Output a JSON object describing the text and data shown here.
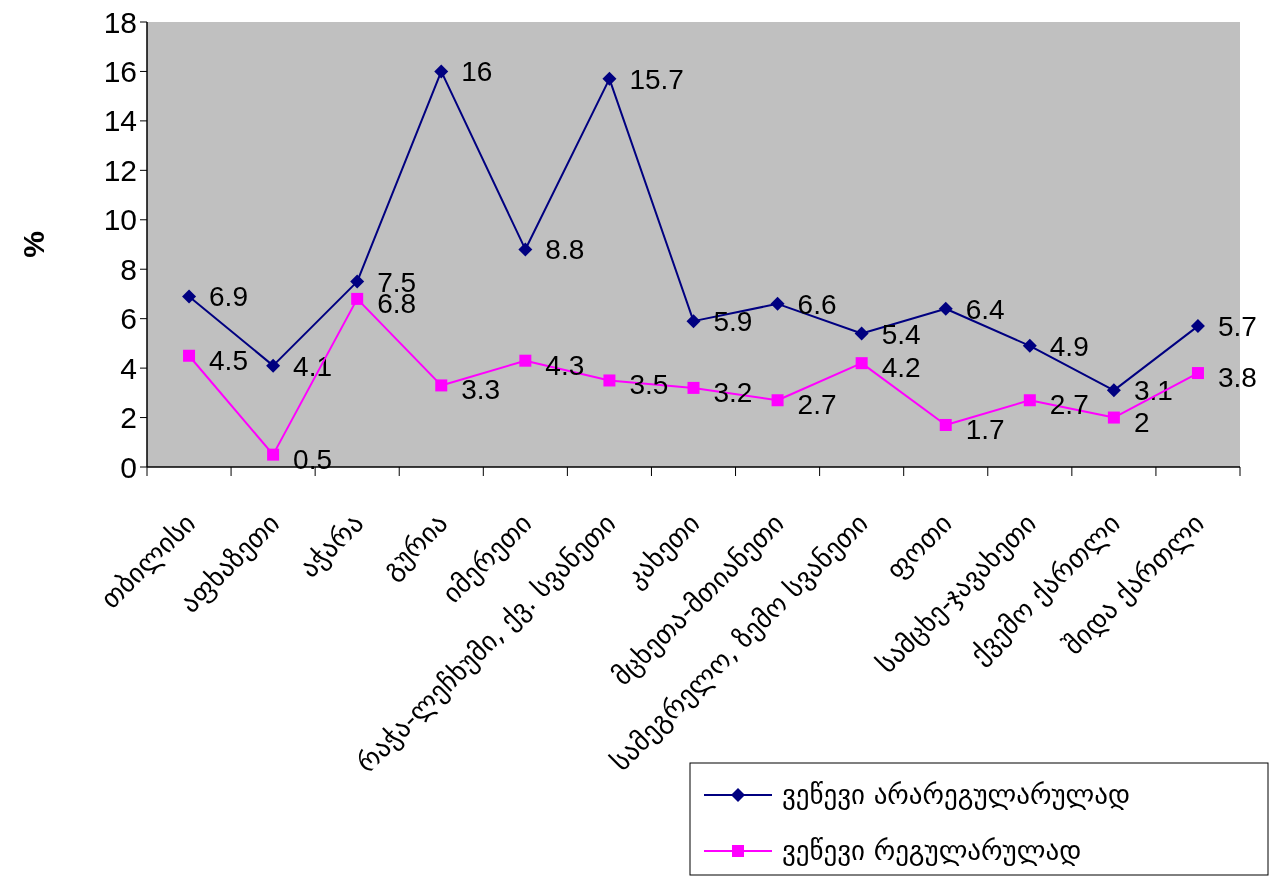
{
  "chart_data": {
    "type": "line",
    "ylabel": "%",
    "categories": [
      "თბილისი",
      "აფხაზეთი",
      "აჭარა",
      "გურია",
      "იმერეთი",
      "რაჭა-ლეჩხუმი, ქვ. სვანეთი",
      "კახეთი",
      "მცხეთა-მთიანეთი",
      "სამეგრელო, ზემო სვანეთი",
      "ფოთი",
      "სამცხე-ჯავახეთი",
      "ქვემო ქართლი",
      "შიდა ქართლი"
    ],
    "series": [
      {
        "name": "ვეწევი არარეგულარულად",
        "color": "#000080",
        "marker": "diamond",
        "values": [
          6.9,
          4.1,
          7.5,
          16,
          8.8,
          15.7,
          5.9,
          6.6,
          5.4,
          6.4,
          4.9,
          3.1,
          5.7
        ]
      },
      {
        "name": "ვეწევი რეგულარულად",
        "color": "#ff00ff",
        "marker": "square",
        "values": [
          4.5,
          0.5,
          6.8,
          3.3,
          4.3,
          3.5,
          3.2,
          2.7,
          4.2,
          1.7,
          2.7,
          2,
          3.8
        ]
      }
    ],
    "ylim": [
      0,
      18
    ],
    "yticks": [
      0,
      2,
      4,
      6,
      8,
      10,
      12,
      14,
      16,
      18
    ],
    "grid": false,
    "legend": "bottom right",
    "data_labels": true
  }
}
